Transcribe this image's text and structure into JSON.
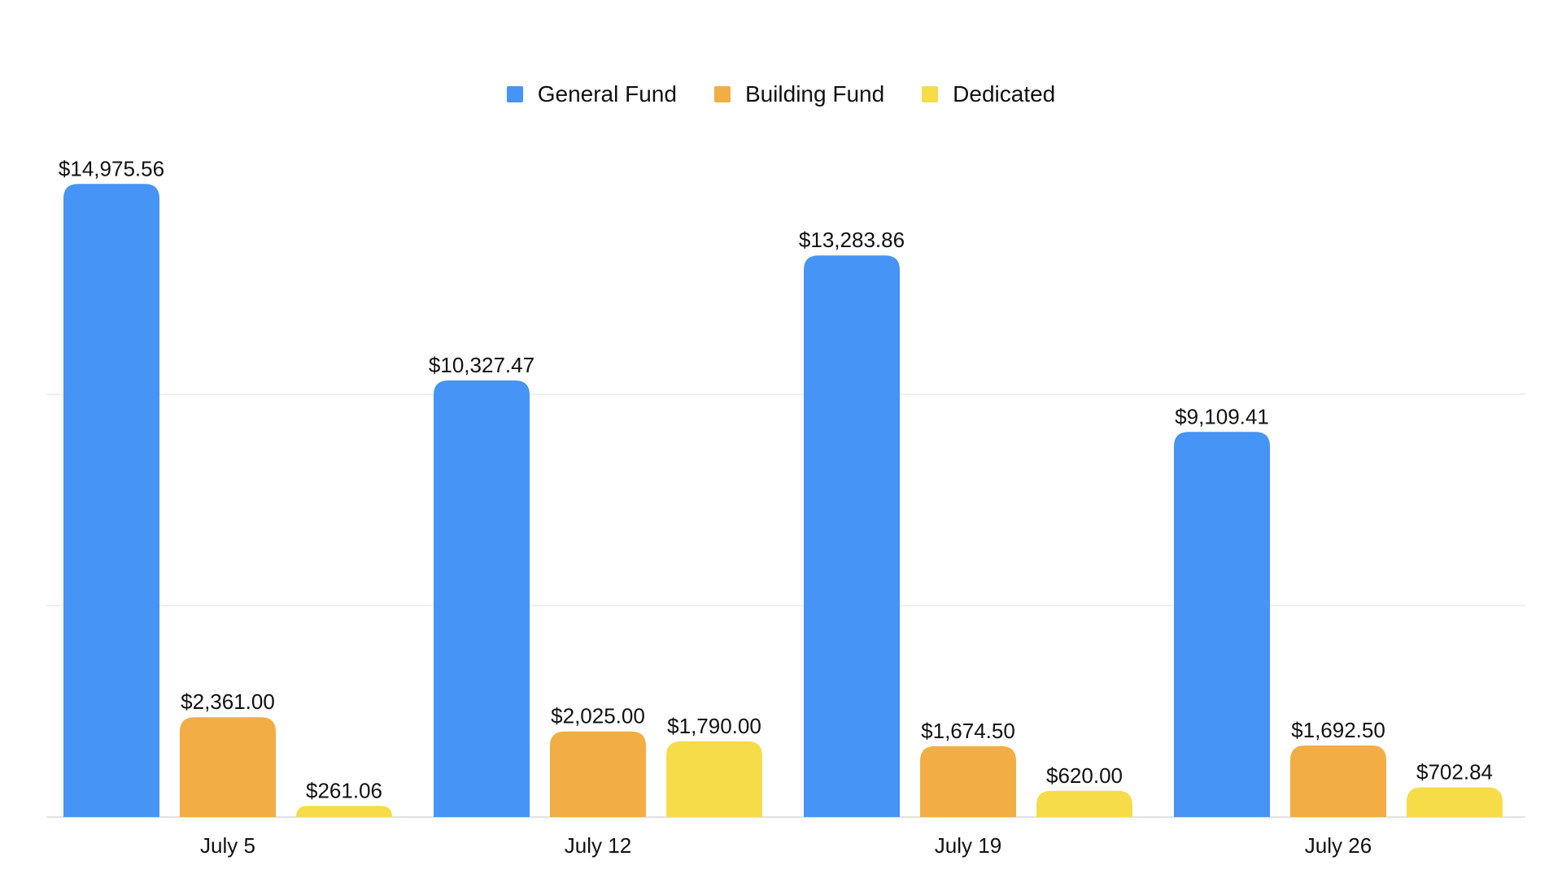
{
  "chart_data": {
    "type": "bar",
    "categories": [
      "July 5",
      "July 12",
      "July 19",
      "July 26"
    ],
    "series": [
      {
        "name": "General Fund",
        "color": "#4694F5",
        "values": [
          14975.56,
          10327.47,
          13283.86,
          9109.41
        ],
        "labels": [
          "$14,975.56",
          "$10,327.47",
          "$13,283.86",
          "$9,109.41"
        ]
      },
      {
        "name": "Building Fund",
        "color": "#F2AE44",
        "values": [
          2361.0,
          2025.0,
          1674.5,
          1692.5
        ],
        "labels": [
          "$2,361.00",
          "$2,025.00",
          "$1,674.50",
          "$1,692.50"
        ]
      },
      {
        "name": "Dedicated",
        "color": "#F7DC4A",
        "values": [
          261.06,
          1790.0,
          620.0,
          702.84
        ],
        "labels": [
          "$261.06",
          "$1,790.00",
          "$620.00",
          "$702.84"
        ]
      }
    ],
    "ylim": [
      0,
      15000
    ],
    "grid": true,
    "legend_position": "top-center",
    "title": "",
    "xlabel": "",
    "ylabel": ""
  }
}
